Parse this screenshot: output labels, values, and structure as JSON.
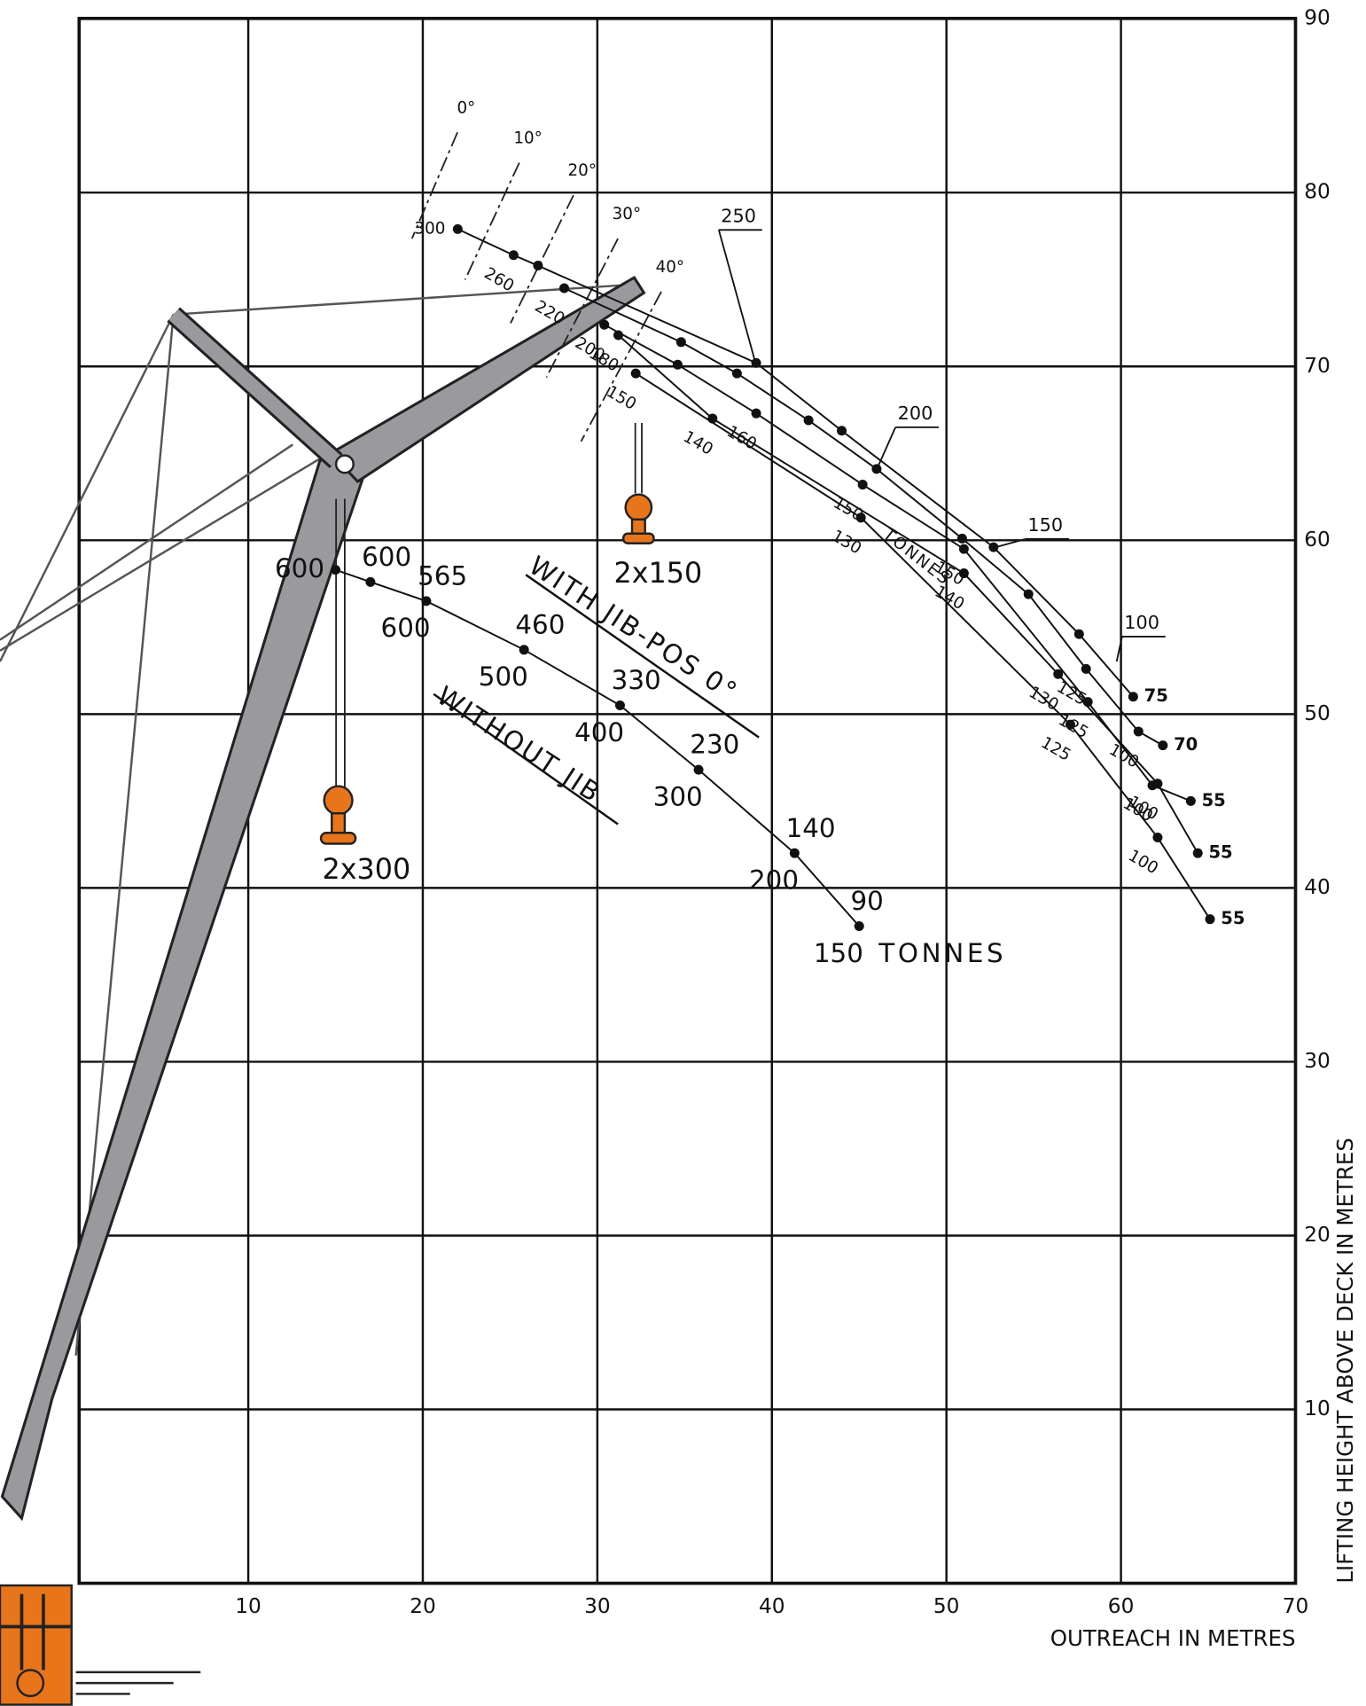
{
  "chart_data": {
    "type": "line",
    "x_label": "OUTREACH IN METRES",
    "y_label": "LIFTING HEIGHT ABOVE DECK IN METRES",
    "xlim": [
      0,
      70
    ],
    "ylim": [
      0,
      90
    ],
    "xticks": [
      10,
      20,
      30,
      40,
      50,
      60,
      70
    ],
    "yticks": [
      10,
      20,
      30,
      40,
      50,
      60,
      70,
      80,
      90
    ],
    "grid": true,
    "without_jib": {
      "label": "WITHOUT JIB",
      "x": [
        15,
        17,
        20.2,
        25.8,
        31.3,
        35.8,
        41.3,
        45
      ],
      "y": [
        58.3,
        57.6,
        56.5,
        53.7,
        50.5,
        46.8,
        42.0,
        37.8
      ],
      "upper_labels": [
        600,
        600,
        565,
        460,
        330,
        230,
        140,
        90
      ],
      "lower_labels": [
        null,
        null,
        600,
        500,
        400,
        300,
        200,
        150
      ],
      "unit": "TONNES",
      "hook_label": "2x300"
    },
    "with_jib": {
      "label": "WITH JIB-POS 0°",
      "hook_label": "2x150",
      "angles": [
        "0°",
        "10°",
        "20°",
        "30°",
        "40°"
      ],
      "unit": "TONNES",
      "callouts": [
        250,
        200,
        150,
        100
      ],
      "curves": [
        {
          "x": [
            22.0,
            25.2,
            26.6,
            39.1,
            44.0,
            52.7,
            57.6,
            60.7
          ],
          "y": [
            77.9,
            76.4,
            75.8,
            70.2,
            66.3,
            59.6,
            54.6,
            51.0
          ],
          "labels": [
            300,
            260,
            null,
            null,
            null,
            null,
            null,
            75
          ]
        },
        {
          "x": [
            28.1,
            34.8,
            38.0,
            42.1,
            46.0,
            50.9,
            54.7,
            58.0,
            61.0,
            62.4
          ],
          "y": [
            74.5,
            71.4,
            69.6,
            66.9,
            64.1,
            60.1,
            56.9,
            52.6,
            49.0,
            48.2
          ],
          "labels": [
            220,
            null,
            null,
            null,
            null,
            null,
            null,
            125,
            100,
            70
          ]
        },
        {
          "x": [
            30.4,
            34.6,
            39.1,
            45.2,
            51.0,
            58.1,
            61.8,
            64.0
          ],
          "y": [
            72.4,
            70.1,
            67.3,
            63.2,
            59.5,
            50.7,
            45.9,
            45.0
          ],
          "labels": [
            200,
            null,
            160,
            150,
            150,
            125,
            100,
            55
          ]
        },
        {
          "x": [
            31.2,
            36.6,
            51.0,
            56.4,
            62.1,
            64.4
          ],
          "y": [
            71.8,
            67.0,
            58.1,
            52.3,
            46.0,
            42.0
          ],
          "labels": [
            180,
            140,
            140,
            130,
            100,
            55
          ]
        },
        {
          "x": [
            32.2,
            45.1,
            57.1,
            62.1,
            65.1
          ],
          "y": [
            69.6,
            61.3,
            49.4,
            42.9,
            38.2
          ],
          "labels": [
            150,
            130,
            125,
            100,
            55
          ]
        }
      ]
    }
  }
}
